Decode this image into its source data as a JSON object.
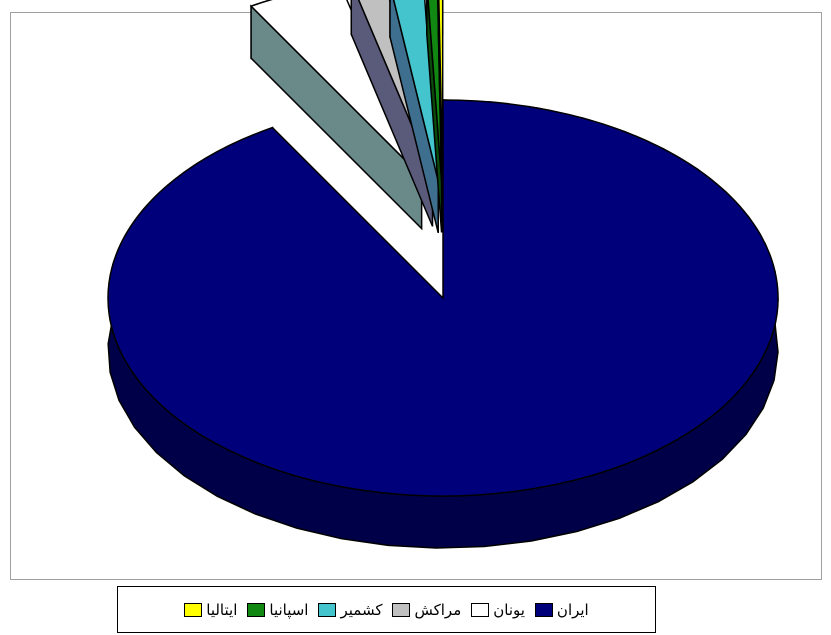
{
  "chart_data": {
    "type": "pie",
    "style": "3d-exploded",
    "categories": [
      "ایران",
      "یونان",
      "مراکش",
      "کشمیر",
      "اسپانیا",
      "ایتالیا"
    ],
    "values": [
      91.5,
      4.6,
      1.6,
      1.6,
      0.5,
      0.2
    ],
    "unit": "percent",
    "colors": [
      "#00007a",
      "#ffffff",
      "#c0c0c0",
      "#44c4cc",
      "#118811",
      "#ffff00"
    ],
    "side_colors": [
      "#000048",
      "#6a8a8a",
      "#5a5a7a",
      "#3f6f8f",
      "#0a4a0a",
      "#9a9a00"
    ],
    "exploded": [
      false,
      true,
      true,
      true,
      true,
      true
    ],
    "legend_position": "bottom"
  }
}
